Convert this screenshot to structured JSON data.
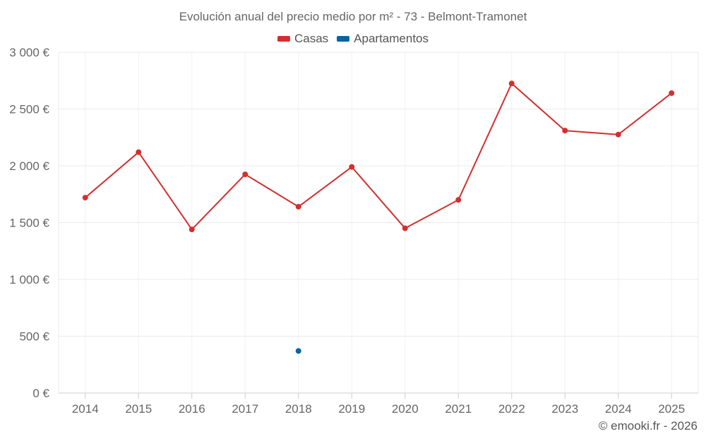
{
  "chart_data": {
    "type": "line",
    "title": "Evolución anual del precio medio por m² - 73 - Belmont-Tramonet",
    "categories": [
      "2014",
      "2015",
      "2016",
      "2017",
      "2018",
      "2019",
      "2020",
      "2021",
      "2022",
      "2023",
      "2024",
      "2025"
    ],
    "series": [
      {
        "name": "Casas",
        "color": "#d32f2f",
        "values": [
          1720,
          2120,
          1440,
          1925,
          1640,
          1990,
          1450,
          1700,
          2725,
          2310,
          2275,
          2640
        ]
      },
      {
        "name": "Apartamentos",
        "color": "#0a64a0",
        "values": [
          null,
          null,
          null,
          null,
          370,
          null,
          null,
          null,
          null,
          null,
          null,
          null
        ]
      }
    ],
    "y_ticks": [
      0,
      500,
      1000,
      1500,
      2000,
      2500,
      3000
    ],
    "y_tick_labels": [
      "0 €",
      "500 €",
      "1 000 €",
      "1 500 €",
      "2 000 €",
      "2 500 €",
      "3 000 €"
    ],
    "ylim": [
      0,
      3000
    ],
    "xlabel": "",
    "ylabel": "",
    "grid": true,
    "legend_position": "top-center"
  },
  "copyright": "© emooki.fr - 2026"
}
